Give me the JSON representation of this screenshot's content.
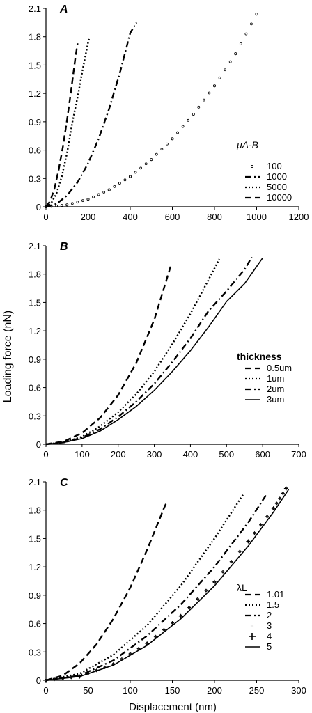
{
  "figure": {
    "ylabel": "Loading force (nN)",
    "xlabel": "Displacement (nm)"
  },
  "chart_data": [
    {
      "panel": "A",
      "type": "line",
      "xlim": [
        0,
        1200
      ],
      "ylim": [
        0,
        2.1
      ],
      "xticks": [
        0,
        200,
        400,
        600,
        800,
        1000,
        1200
      ],
      "yticks": [
        "0",
        "0.3",
        "0.6",
        "0.9",
        "1.2",
        "1.5",
        "1.8",
        "2.1"
      ],
      "legend_title": "μA-B",
      "legend_placement": "right",
      "series": [
        {
          "name": "100",
          "style": "circles",
          "x": [
            0,
            100,
            200,
            300,
            400,
            500,
            600,
            700,
            800,
            900,
            1000
          ],
          "y": [
            0,
            0.02,
            0.08,
            0.18,
            0.32,
            0.5,
            0.72,
            0.98,
            1.28,
            1.62,
            2.04
          ]
        },
        {
          "name": "1000",
          "style": "dashdot",
          "x": [
            0,
            50,
            100,
            150,
            200,
            250,
            300,
            350,
            400,
            430
          ],
          "y": [
            0,
            0.03,
            0.12,
            0.26,
            0.46,
            0.72,
            1.04,
            1.41,
            1.84,
            1.95
          ]
        },
        {
          "name": "5000",
          "style": "dotted",
          "x": [
            0,
            25,
            50,
            75,
            100,
            125,
            150,
            175,
            200,
            205
          ],
          "y": [
            0,
            0.04,
            0.14,
            0.32,
            0.57,
            0.89,
            1.16,
            1.46,
            1.74,
            1.78
          ]
        },
        {
          "name": "10000",
          "style": "dashed",
          "x": [
            0,
            20,
            40,
            60,
            80,
            100,
            120,
            140,
            150
          ],
          "y": [
            0,
            0.06,
            0.19,
            0.39,
            0.63,
            0.92,
            1.24,
            1.58,
            1.73
          ]
        }
      ]
    },
    {
      "panel": "B",
      "type": "line",
      "xlim": [
        0,
        700
      ],
      "ylim": [
        0,
        2.1
      ],
      "xticks": [
        0,
        100,
        200,
        300,
        400,
        500,
        600,
        700
      ],
      "yticks": [
        "0",
        "0.3",
        "0.6",
        "0.9",
        "1.2",
        "1.5",
        "1.8",
        "2.1"
      ],
      "legend_title": "thickness",
      "legend_placement": "right",
      "series": [
        {
          "name": "0.5um",
          "style": "dashed",
          "x": [
            0,
            50,
            100,
            150,
            200,
            250,
            300,
            345
          ],
          "y": [
            0,
            0.03,
            0.12,
            0.28,
            0.52,
            0.86,
            1.32,
            1.88
          ]
        },
        {
          "name": "1um",
          "style": "dotted",
          "x": [
            0,
            50,
            100,
            150,
            200,
            250,
            300,
            350,
            400,
            450,
            480
          ],
          "y": [
            0,
            0.02,
            0.08,
            0.19,
            0.34,
            0.53,
            0.77,
            1.06,
            1.38,
            1.74,
            1.96
          ]
        },
        {
          "name": "2um",
          "style": "dashdot",
          "x": [
            0,
            50,
            100,
            150,
            200,
            250,
            300,
            350,
            400,
            450,
            500,
            550,
            570
          ],
          "y": [
            0,
            0.02,
            0.07,
            0.16,
            0.29,
            0.45,
            0.64,
            0.87,
            1.12,
            1.41,
            1.62,
            1.85,
            1.98
          ]
        },
        {
          "name": "3um",
          "style": "solid",
          "x": [
            0,
            50,
            100,
            150,
            200,
            250,
            300,
            350,
            400,
            450,
            500,
            550,
            600
          ],
          "y": [
            0,
            0.02,
            0.06,
            0.14,
            0.26,
            0.4,
            0.57,
            0.77,
            0.99,
            1.24,
            1.51,
            1.7,
            1.97
          ]
        }
      ]
    },
    {
      "panel": "C",
      "type": "line",
      "xlim": [
        0,
        300
      ],
      "ylim": [
        0,
        2.1
      ],
      "xticks": [
        0,
        50,
        100,
        150,
        200,
        250,
        300
      ],
      "yticks": [
        "0",
        "0.3",
        "0.6",
        "0.9",
        "1.2",
        "1.5",
        "1.8",
        "2.1"
      ],
      "legend_title": "λL",
      "legend_placement": "right",
      "series": [
        {
          "name": "1.01",
          "style": "dashed",
          "x": [
            0,
            20,
            40,
            60,
            80,
            100,
            120,
            140,
            143
          ],
          "y": [
            0,
            0.05,
            0.18,
            0.38,
            0.65,
            0.98,
            1.38,
            1.82,
            1.88
          ]
        },
        {
          "name": "1.5",
          "style": "dotted",
          "x": [
            0,
            40,
            80,
            120,
            160,
            200,
            235
          ],
          "y": [
            0,
            0.07,
            0.27,
            0.58,
            1.0,
            1.5,
            1.98
          ]
        },
        {
          "name": "2",
          "style": "dashdot",
          "x": [
            0,
            40,
            80,
            120,
            160,
            200,
            240,
            262
          ],
          "y": [
            0,
            0.05,
            0.21,
            0.47,
            0.8,
            1.2,
            1.67,
            1.97
          ]
        },
        {
          "name": "3",
          "style": "circles",
          "x": [
            0,
            40,
            80,
            120,
            160,
            200,
            240,
            270,
            285
          ],
          "y": [
            0,
            0.04,
            0.17,
            0.39,
            0.68,
            1.04,
            1.47,
            1.82,
            2.03
          ]
        },
        {
          "name": "4",
          "style": "plus",
          "x": [
            0,
            40,
            80,
            120,
            160,
            200,
            240,
            270,
            285
          ],
          "y": [
            0,
            0.04,
            0.17,
            0.39,
            0.68,
            1.04,
            1.47,
            1.82,
            2.03
          ]
        },
        {
          "name": "5",
          "style": "solid",
          "x": [
            0,
            40,
            80,
            120,
            160,
            200,
            240,
            270,
            288
          ],
          "y": [
            0,
            0.04,
            0.16,
            0.37,
            0.65,
            1.0,
            1.42,
            1.78,
            2.02
          ]
        }
      ]
    }
  ]
}
